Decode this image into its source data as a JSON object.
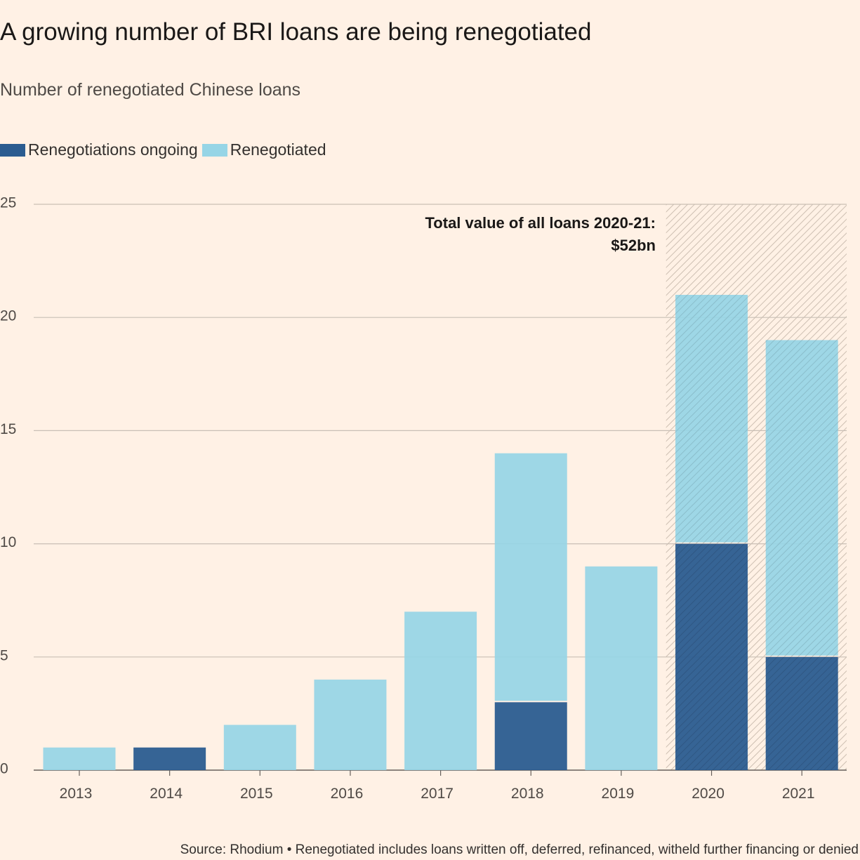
{
  "title": "A growing number of BRI loans are being renegotiated",
  "subtitle": "Number of renegotiated Chinese loans",
  "source": "Source: Rhodium • Renegotiated includes loans written off, deferred, refinanced, witheld further financing or denied",
  "colors": {
    "background": "#fff1e5",
    "ongoing": "#2b5c90",
    "renegotiated": "#96d5e6",
    "gridline": "#c9bfb5",
    "hatch": "#d8cbbe"
  },
  "chart_data": {
    "type": "bar",
    "stacked": true,
    "categories": [
      "2013",
      "2014",
      "2015",
      "2016",
      "2017",
      "2018",
      "2019",
      "2020",
      "2021"
    ],
    "series": [
      {
        "name": "Renegotiations ongoing",
        "values": [
          0,
          1,
          0,
          0,
          0,
          3,
          0,
          10,
          5
        ]
      },
      {
        "name": "Renegotiated",
        "values": [
          1,
          0,
          2,
          4,
          7,
          11,
          9,
          11,
          14
        ]
      }
    ],
    "ylim": [
      0,
      25
    ],
    "yticks": [
      0,
      5,
      10,
      15,
      20,
      25
    ],
    "grid": true,
    "legend_position": "top-left",
    "shaded_categories": [
      "2020",
      "2021"
    ],
    "annotation": {
      "line1": "Total value of all loans 2020-21:",
      "line2": "$52bn"
    }
  }
}
